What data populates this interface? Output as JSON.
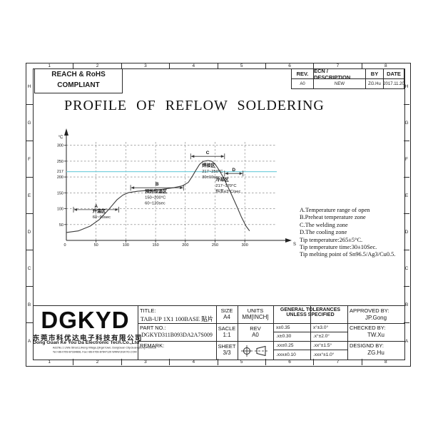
{
  "frame": {
    "zone_numbers": [
      "1",
      "2",
      "3",
      "4",
      "5",
      "6",
      "7",
      "8"
    ],
    "zone_letters": [
      "H",
      "G",
      "F",
      "E",
      "D",
      "C",
      "B",
      "A"
    ]
  },
  "compliance_badge": {
    "line1": "REACH & RoHS",
    "line2": "COMPLIANT"
  },
  "revision_table": {
    "headers": [
      "REV.",
      "ECN / DESCRIPTION",
      "BY",
      "DATE"
    ],
    "row": [
      "A0",
      "NEW",
      "ZG.Hu",
      "2017.11.20"
    ]
  },
  "drawing_title": "PROFILE OF REFLOW SOLDERING",
  "chart_data": {
    "type": "line",
    "title": "PROFILE OF REFLOW SOLDERING",
    "xlabel": "S",
    "ylabel": "°C",
    "xlim": [
      0,
      315
    ],
    "ylim": [
      0,
      330
    ],
    "x_ticks": [
      0,
      50,
      100,
      150,
      200,
      250,
      300
    ],
    "y_ticks": [
      50,
      100,
      150,
      200,
      250,
      300
    ],
    "grid": "dashed",
    "reference_line": {
      "y": 217,
      "label": "217",
      "color": "#7ad1df"
    },
    "curve_x": [
      0,
      20,
      40,
      55,
      70,
      85,
      95,
      105,
      120,
      140,
      160,
      180,
      195,
      205,
      212,
      218,
      224,
      230,
      238,
      244,
      250,
      256,
      262,
      270,
      278,
      286,
      294,
      302,
      308
    ],
    "curve_y": [
      25,
      30,
      45,
      65,
      95,
      128,
      143,
      151,
      155,
      158,
      161,
      166,
      172,
      183,
      203,
      222,
      240,
      249,
      252,
      250,
      241,
      224,
      205,
      175,
      143,
      110,
      75,
      45,
      30
    ],
    "zones": [
      {
        "marker": "A",
        "span": [
          12,
          88
        ],
        "span_y": 97,
        "text_x": 44,
        "text_y": 88,
        "lines": [
          "升温区",
          "60~90sec"
        ]
      },
      {
        "marker": "B",
        "span": [
          108,
          197
        ],
        "span_y": 166,
        "text_x": 132,
        "text_y": 150,
        "lines": [
          "预热恒温区",
          "150~200°C",
          "60~120sec"
        ]
      },
      {
        "marker": "C",
        "span": [
          209,
          266
        ],
        "span_y": 265,
        "text_x": 228,
        "text_y": 232,
        "lines": [
          "焊接区",
          "217~250°C",
          "30±10sec"
        ]
      },
      {
        "marker": "D",
        "span": [
          266,
          297
        ],
        "span_y": 211,
        "text_x": 251,
        "text_y": 187,
        "lines": [
          "冷却区",
          "217~170°C",
          "斜率≤3°C/sec"
        ]
      }
    ]
  },
  "notes": [
    "A.Temperature range of open",
    "B.Preheat temperature zone",
    "C.The welding zone",
    "D.The cooling zone",
    "Tip temperature:265±5°C.",
    "Tip temperature time:30±10Sec.",
    "Tip melting point of Sn96.5/Ag3/Cu0.5."
  ],
  "title_block": {
    "logo": "DGKYD",
    "company_cn": "东莞市科优达电子科技有限公司",
    "company_en": "Dong Guan Ke You Da Electronic Tech.Co.,Ltd",
    "address": "Add:No.1 LiWe Street,LiHeng Village,Qingxi town, DongGuan City,GuangDong Province",
    "contact": "Tel:+86-0769-87334866, Fax:+86-0769-87847129 WWW.DGKYD.COM",
    "title_label": "TITLE:",
    "title_value": "TAB-UP 1X1 100BASE 贴片",
    "part_label": "PART NO.:",
    "part_value": "DGKYD311B093DA2A7S009",
    "remark_label": "REMARK:",
    "size_label": "SIZE",
    "size_value": "A4",
    "units_label": "UNITS",
    "units_value": "MM[INCH]",
    "scale_label": "SACLE",
    "scale_value": "1:1",
    "rev_label": "REV",
    "rev_value": "A0",
    "sheet_label": "SHEET",
    "sheet_value": "3/3",
    "tol_header_1": "GENERAL TOLERANCES",
    "tol_header_2": "UNLESS SPECIFIED",
    "tolerances": [
      [
        "x±0.35",
        "x°±3.0°"
      ],
      [
        ".x±0.30",
        ".x°±2.0°"
      ],
      [
        ".xx±0.25",
        ".xx°±1.5°"
      ],
      [
        ".xxx±0.10",
        ".xxx°±1.0°"
      ]
    ],
    "approved_label": "APPROVED BY:",
    "approved_value": "JP.Gong",
    "checked_label": "CHECKED BY:",
    "checked_value": "TW.Xu",
    "designed_label": "DESIGND BY:",
    "designed_value": "ZG.Hu"
  }
}
